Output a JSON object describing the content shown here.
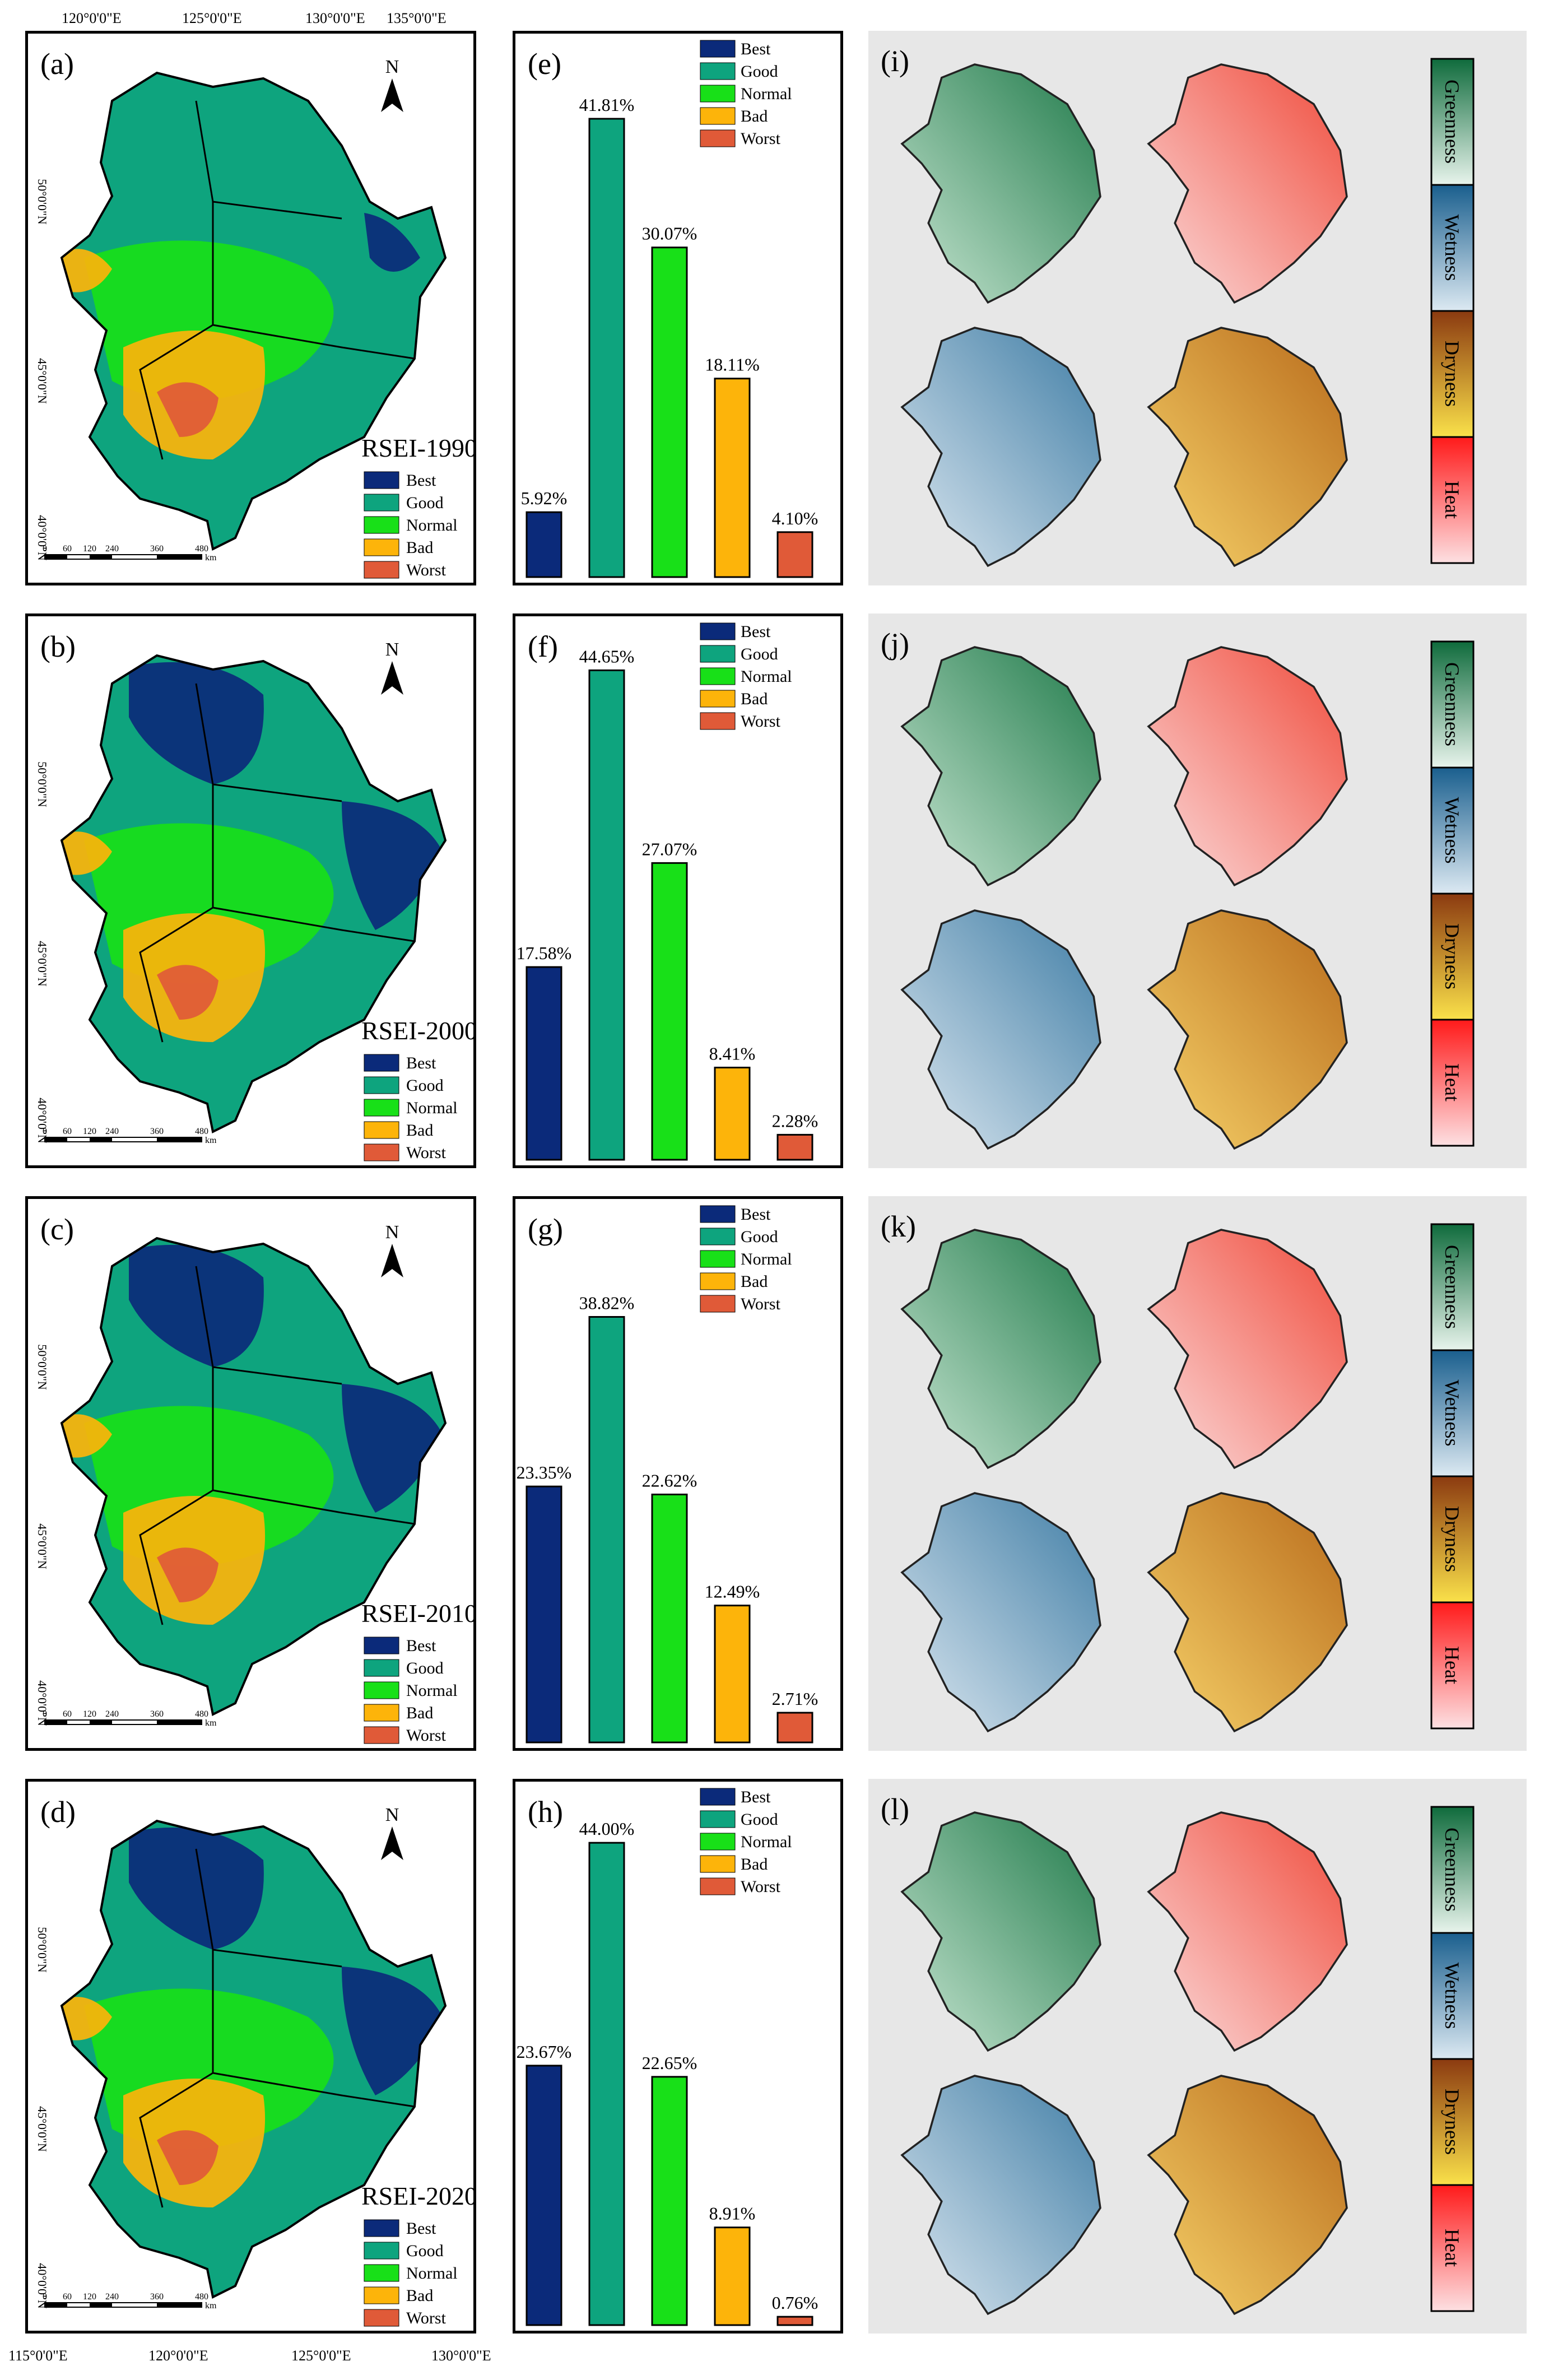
{
  "figure": {
    "top_longitudes": [
      "120°0'0\"E",
      "125°0'0\"E",
      "130°0'0\"E",
      "135°0'0\"E"
    ],
    "bottom_longitudes": [
      "115°0'0\"E",
      "120°0'0\"E",
      "125°0'0\"E",
      "130°0'0\"E"
    ],
    "latitudes": [
      "50°0'0\"N",
      "45°0'0\"N",
      "40°0'0\"N"
    ],
    "north_label": "N",
    "scale_ticks": [
      "0",
      "60",
      "120",
      "240",
      "360",
      "480"
    ],
    "scale_unit": "km",
    "legend_classes": [
      "Best",
      "Good",
      "Normal",
      "Bad",
      "Worst"
    ],
    "class_colors": {
      "Best": "#0b2a7a",
      "Good": "#0ea47e",
      "Normal": "#18e018",
      "Bad": "#fdb40a",
      "Worst": "#e05a38"
    },
    "rgb_legend_labels": [
      "Greenness",
      "Wetness",
      "Dryness",
      "Heat"
    ]
  },
  "rows": [
    {
      "map_label": "(a)",
      "bar_label": "(e)",
      "rgb_label": "(i)",
      "map_title": "RSEI-1990"
    },
    {
      "map_label": "(b)",
      "bar_label": "(f)",
      "rgb_label": "(j)",
      "map_title": "RSEI-2000"
    },
    {
      "map_label": "(c)",
      "bar_label": "(g)",
      "rgb_label": "(k)",
      "map_title": "RSEI-2010"
    },
    {
      "map_label": "(d)",
      "bar_label": "(h)",
      "rgb_label": "(l)",
      "map_title": "RSEI-2020"
    }
  ],
  "chart_data": [
    {
      "type": "bar",
      "panel": "(e)",
      "year": "1990",
      "categories": [
        "Best",
        "Good",
        "Normal",
        "Bad",
        "Worst"
      ],
      "values": [
        5.92,
        41.81,
        30.07,
        18.11,
        4.1
      ],
      "labels": [
        "5.92%",
        "41.81%",
        "30.07%",
        "18.11%",
        "4.10%"
      ],
      "ylim": [
        0,
        46
      ]
    },
    {
      "type": "bar",
      "panel": "(f)",
      "year": "2000",
      "categories": [
        "Best",
        "Good",
        "Normal",
        "Bad",
        "Worst"
      ],
      "values": [
        17.58,
        44.65,
        27.07,
        8.41,
        2.28
      ],
      "labels": [
        "17.58%",
        "44.65%",
        "27.07%",
        "8.41%",
        "2.28%"
      ],
      "ylim": [
        0,
        46
      ]
    },
    {
      "type": "bar",
      "panel": "(g)",
      "year": "2010",
      "categories": [
        "Best",
        "Good",
        "Normal",
        "Bad",
        "Worst"
      ],
      "values": [
        23.35,
        38.82,
        22.62,
        12.49,
        2.71
      ],
      "labels": [
        "23.35%",
        "38.82%",
        "22.62%",
        "12.49%",
        "2.71%"
      ],
      "ylim": [
        0,
        46
      ]
    },
    {
      "type": "bar",
      "panel": "(h)",
      "year": "2020",
      "categories": [
        "Best",
        "Good",
        "Normal",
        "Bad",
        "Worst"
      ],
      "values": [
        23.67,
        44.0,
        22.65,
        8.91,
        0.76
      ],
      "labels": [
        "23.67%",
        "44.00%",
        "22.65%",
        "8.91%",
        "0.76%"
      ],
      "ylim": [
        0,
        46
      ]
    }
  ]
}
